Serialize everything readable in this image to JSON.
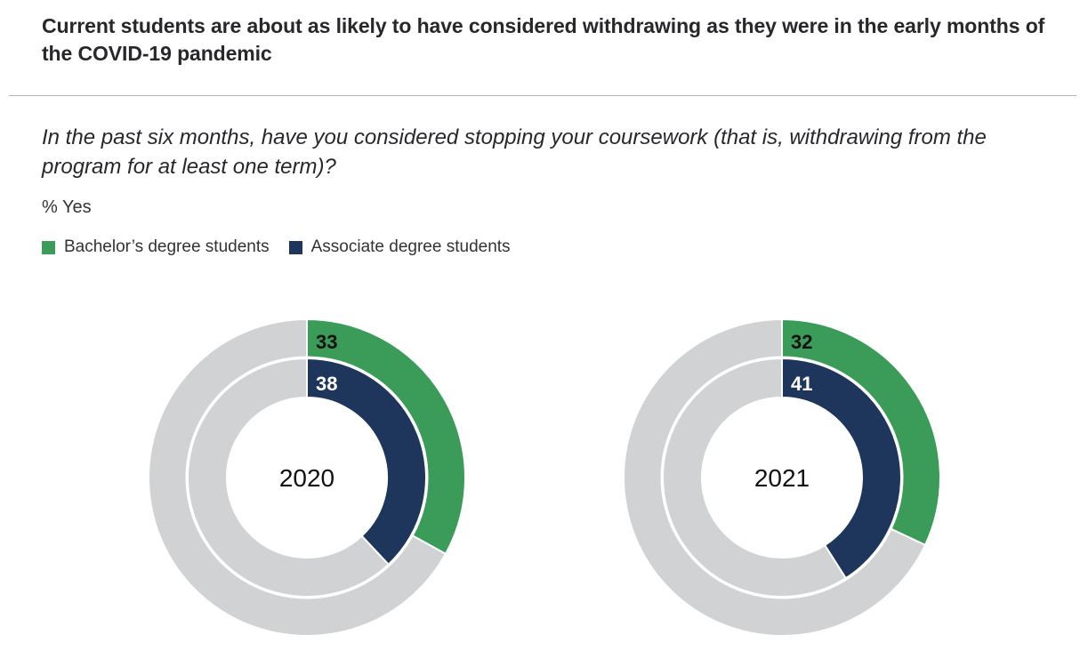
{
  "header": {
    "title": "Current students are about as likely to have considered withdrawing as they were in the early months of the COVID-19 pandemic",
    "question": "In the past six months, have you considered stopping your coursework (that is, withdrawing from the program for at least one term)?",
    "unit": "% Yes"
  },
  "legend": [
    {
      "label": "Bachelor’s degree students",
      "color": "#3a9c58"
    },
    {
      "label": "Associate degree students",
      "color": "#1f365c"
    }
  ],
  "colors": {
    "remainder": "#d1d2d4",
    "bachelor": "#3a9c58",
    "associate": "#1f365c",
    "outer_label": "#111111",
    "inner_label": "#ffffff"
  },
  "chart_data": [
    {
      "type": "pie",
      "subtype": "nested-donut",
      "title": "2020",
      "unit": "% Yes",
      "series": [
        {
          "name": "Bachelor’s degree students",
          "ring": "outer",
          "value": 33,
          "label": "33"
        },
        {
          "name": "Associate degree students",
          "ring": "inner",
          "value": 38,
          "label": "38"
        }
      ],
      "total": 100
    },
    {
      "type": "pie",
      "subtype": "nested-donut",
      "title": "2021",
      "unit": "% Yes",
      "series": [
        {
          "name": "Bachelor’s degree students",
          "ring": "outer",
          "value": 32,
          "label": "32"
        },
        {
          "name": "Associate degree students",
          "ring": "inner",
          "value": 41,
          "label": "41"
        }
      ],
      "total": 100
    }
  ]
}
